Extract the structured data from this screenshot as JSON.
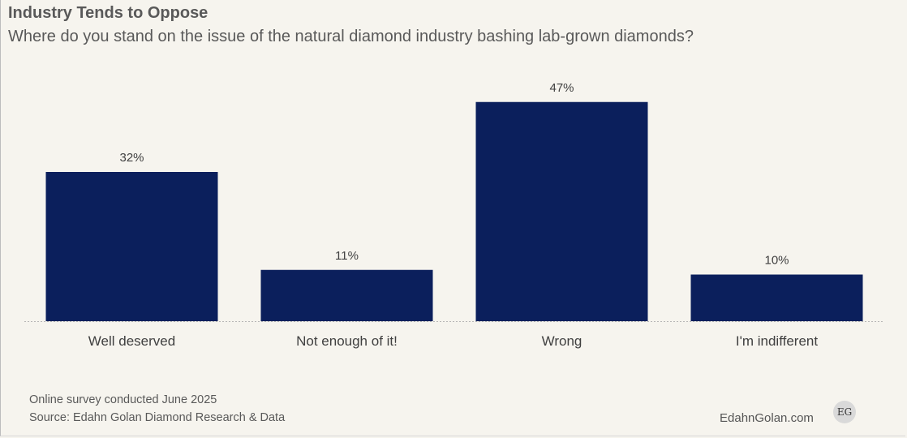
{
  "title": "Industry Tends to Oppose",
  "subtitle": "Where do you stand on the issue of the natural diamond industry bashing lab-grown diamonds?",
  "footer": {
    "note": "Online survey conducted June 2025",
    "source": "Source: Edahn Golan Diamond Research & Data",
    "brand": "EdahnGolan.com",
    "logo_text": "EG"
  },
  "colors": {
    "bar": "#0b1f5c",
    "background": "#f6f4ee"
  },
  "chart_data": {
    "type": "bar",
    "categories": [
      "Well deserved",
      "Not enough of it!",
      "Wrong",
      "I'm indifferent"
    ],
    "values": [
      32,
      11,
      47,
      10
    ],
    "data_labels": [
      "32%",
      "11%",
      "47%",
      "10%"
    ],
    "title": "Industry Tends to Oppose",
    "xlabel": "",
    "ylabel": "",
    "ylim": [
      0,
      50
    ],
    "grid": false,
    "legend": "none"
  }
}
